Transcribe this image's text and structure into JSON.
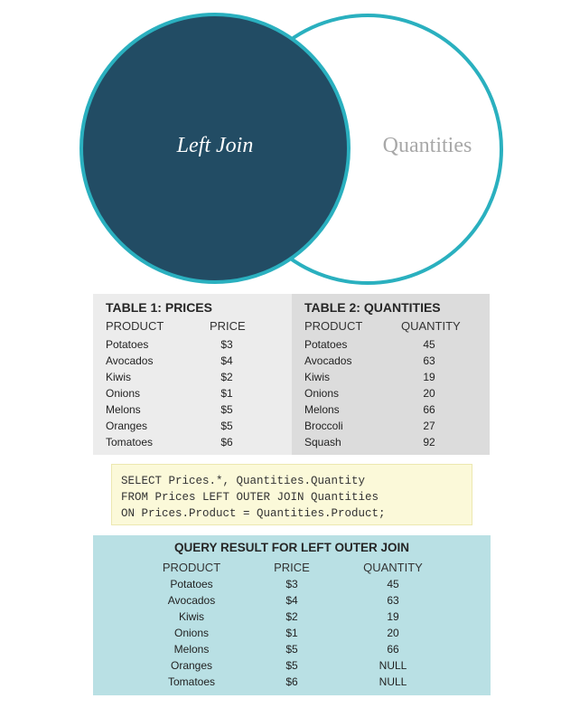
{
  "venn": {
    "left_label": "Left Join",
    "right_label": "Quantities",
    "colors": {
      "left_fill": "#224c64",
      "stroke": "#2ab0bf",
      "right_fill": "#ffffff"
    }
  },
  "table1": {
    "title": "TABLE 1: PRICES",
    "headers": [
      "PRODUCT",
      "PRICE"
    ],
    "rows": [
      [
        "Potatoes",
        "$3"
      ],
      [
        "Avocados",
        "$4"
      ],
      [
        "Kiwis",
        "$2"
      ],
      [
        "Onions",
        "$1"
      ],
      [
        "Melons",
        "$5"
      ],
      [
        "Oranges",
        "$5"
      ],
      [
        "Tomatoes",
        "$6"
      ]
    ]
  },
  "table2": {
    "title": "TABLE 2: QUANTITIES",
    "headers": [
      "PRODUCT",
      "QUANTITY"
    ],
    "rows": [
      [
        "Potatoes",
        "45"
      ],
      [
        "Avocados",
        "63"
      ],
      [
        "Kiwis",
        "19"
      ],
      [
        "Onions",
        "20"
      ],
      [
        "Melons",
        "66"
      ],
      [
        "Broccoli",
        "27"
      ],
      [
        "Squash",
        "92"
      ]
    ]
  },
  "sql": {
    "lines": [
      "SELECT Prices.*, Quantities.Quantity",
      "FROM Prices LEFT OUTER JOIN Quantities",
      "ON Prices.Product = Quantities.Product;"
    ]
  },
  "result": {
    "title": "QUERY RESULT FOR LEFT OUTER JOIN",
    "headers": [
      "PRODUCT",
      "PRICE",
      "QUANTITY"
    ],
    "rows": [
      [
        "Potatoes",
        "$3",
        "45"
      ],
      [
        "Avocados",
        "$4",
        "63"
      ],
      [
        "Kiwis",
        "$2",
        "19"
      ],
      [
        "Onions",
        "$1",
        "20"
      ],
      [
        "Melons",
        "$5",
        "66"
      ],
      [
        "Oranges",
        "$5",
        "NULL"
      ],
      [
        "Tomatoes",
        "$6",
        "NULL"
      ]
    ]
  }
}
